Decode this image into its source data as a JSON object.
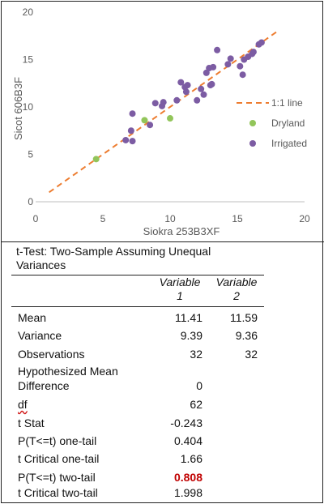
{
  "chart_data": {
    "type": "scatter",
    "title": "",
    "xlabel": "Siokra 253B3XF",
    "ylabel": "Sicot 606B3F",
    "xlim": [
      0,
      20
    ],
    "ylim": [
      0,
      20
    ],
    "x_ticks": [
      "0",
      "5",
      "10",
      "15",
      "20"
    ],
    "y_ticks": [
      "0",
      "5",
      "10",
      "15",
      "20"
    ],
    "grid": false,
    "legend_position": "right",
    "reference_line": {
      "name": "1:1 line",
      "x": [
        1,
        18
      ],
      "y": [
        1,
        18
      ],
      "color": "#ed7d31",
      "style": "dashed"
    },
    "series": [
      {
        "name": "Dryland",
        "color": "#92c55a",
        "points": [
          [
            4.5,
            4.5
          ],
          [
            8.1,
            8.6
          ],
          [
            10.0,
            8.8
          ]
        ]
      },
      {
        "name": "Irrigated",
        "color": "#7c5ca3",
        "points": [
          [
            6.7,
            6.5
          ],
          [
            7.2,
            6.4
          ],
          [
            7.1,
            7.5
          ],
          [
            7.2,
            9.3
          ],
          [
            8.5,
            8.1
          ],
          [
            8.9,
            10.4
          ],
          [
            9.4,
            10.1
          ],
          [
            9.5,
            10.5
          ],
          [
            10.5,
            10.7
          ],
          [
            10.8,
            12.6
          ],
          [
            11.1,
            12.1
          ],
          [
            11.3,
            12.3
          ],
          [
            11.2,
            11.6
          ],
          [
            12.0,
            10.7
          ],
          [
            12.3,
            11.9
          ],
          [
            12.5,
            11.3
          ],
          [
            12.7,
            13.6
          ],
          [
            12.9,
            14.1
          ],
          [
            13.1,
            12.4
          ],
          [
            13.0,
            12.3
          ],
          [
            13.2,
            14.2
          ],
          [
            13.5,
            16.0
          ],
          [
            14.3,
            14.5
          ],
          [
            14.5,
            15.1
          ],
          [
            15.4,
            13.4
          ],
          [
            15.5,
            15.0
          ],
          [
            15.8,
            15.3
          ],
          [
            16.1,
            15.6
          ],
          [
            16.2,
            15.8
          ],
          [
            16.6,
            16.6
          ],
          [
            16.8,
            16.8
          ],
          [
            15.2,
            14.3
          ]
        ]
      }
    ]
  },
  "ttest": {
    "title": "t-Test: Two-Sample Assuming Unequal Variances",
    "headers": {
      "var1_line1": "Variable",
      "var1_line2": "1",
      "var2_line1": "Variable",
      "var2_line2": "2"
    },
    "rows": [
      {
        "label": "Mean",
        "v1": "11.41",
        "v2": "11.59"
      },
      {
        "label": "Variance",
        "v1": "9.39",
        "v2": "9.36"
      },
      {
        "label": "Observations",
        "v1": "32",
        "v2": "32"
      },
      {
        "label": "Hypothesized Mean",
        "v1": "",
        "v2": ""
      },
      {
        "label": "Difference",
        "v1": "0",
        "v2": ""
      },
      {
        "label": "df",
        "v1": "62",
        "v2": ""
      },
      {
        "label": "t Stat",
        "v1": "-0.243",
        "v2": ""
      },
      {
        "label": "P(T<=t) one-tail",
        "v1": "0.404",
        "v2": ""
      },
      {
        "label": "t Critical one-tail",
        "v1": "1.66",
        "v2": ""
      },
      {
        "label": "P(T<=t) two-tail",
        "v1": "0.808",
        "v2": ""
      },
      {
        "label": "t Critical two-tail",
        "v1": "1.998",
        "v2": ""
      }
    ],
    "highlight_color": "#c00000"
  }
}
